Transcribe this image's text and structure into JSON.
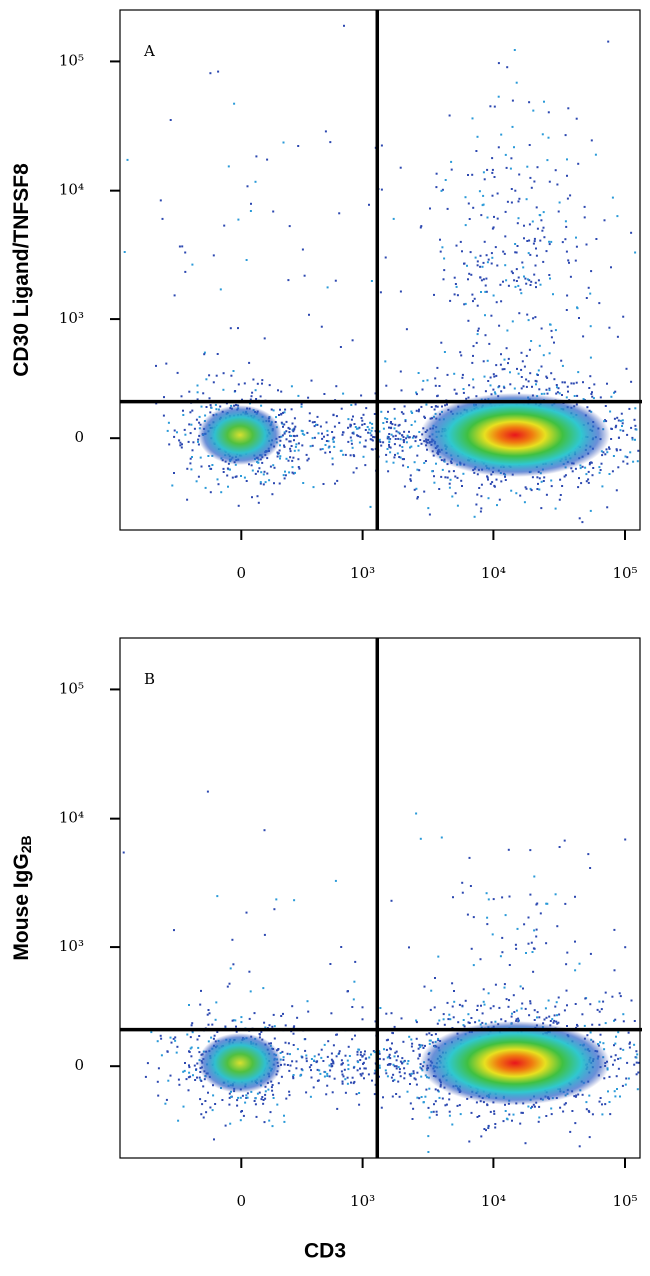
{
  "chart_data": [
    {
      "type": "density",
      "panel_label": "A",
      "ylabel": "CD30 Ligand/TNFSF8",
      "xlim": [
        -1000,
        130000
      ],
      "ylim": [
        -600,
        250000
      ],
      "xticks": [
        0,
        {
          "value": 1000,
          "label": "10³"
        },
        {
          "value": 10000,
          "label": "10⁴"
        },
        {
          "value": 100000,
          "label": "10⁵"
        }
      ],
      "yticks": [
        0,
        {
          "value": 1000,
          "label": "10³"
        },
        {
          "value": 10000,
          "label": "10⁴"
        },
        {
          "value": 100000,
          "label": "10⁵"
        }
      ],
      "quadrant_gates": {
        "x": 1300,
        "y": 170
      }
    },
    {
      "type": "density",
      "panel_label": "B",
      "ylabel": "Mouse IgG",
      "ylabel_subscript": "2B",
      "xlabel": "CD3",
      "xlim": [
        -1000,
        130000
      ],
      "ylim": [
        -600,
        250000
      ],
      "xticks": [
        0,
        {
          "value": 1000,
          "label": "10³"
        },
        {
          "value": 10000,
          "label": "10⁴"
        },
        {
          "value": 100000,
          "label": "10⁵"
        }
      ],
      "yticks": [
        0,
        {
          "value": 1000,
          "label": "10³"
        },
        {
          "value": 10000,
          "label": "10⁴"
        },
        {
          "value": 100000,
          "label": "10⁵"
        }
      ],
      "quadrant_gates": {
        "x": 1300,
        "y": 170
      }
    }
  ]
}
